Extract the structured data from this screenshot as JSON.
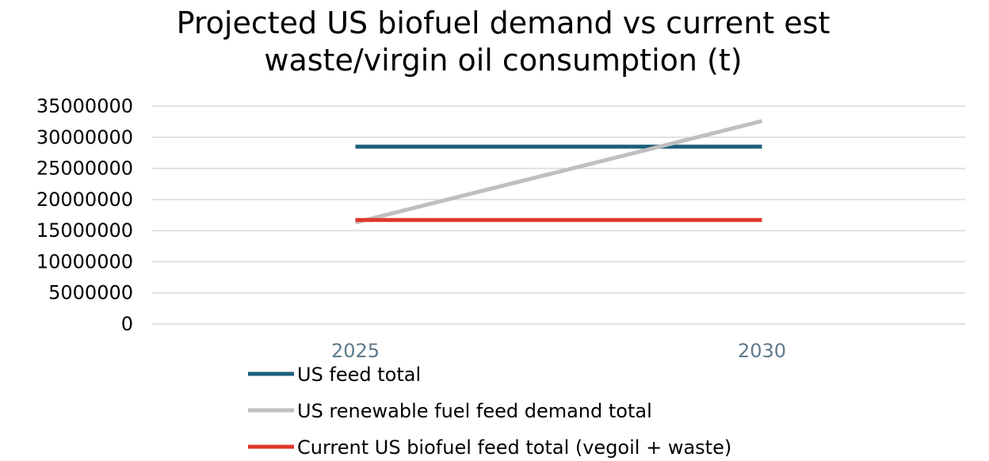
{
  "chart_data": {
    "type": "line",
    "title_lines": [
      "Projected US biofuel demand vs current est",
      "waste/virgin oil consumption (t)"
    ],
    "categories": [
      "2025",
      "2030"
    ],
    "ylim": [
      0,
      35000000
    ],
    "yticks": [
      "0",
      "5000000",
      "10000000",
      "15000000",
      "20000000",
      "25000000",
      "30000000",
      "35000000"
    ],
    "grid": true,
    "legend_position": "bottom-left",
    "series": [
      {
        "name": "US feed total",
        "color": "#1a5e7a",
        "values": [
          28500000,
          28500000
        ]
      },
      {
        "name": "US renewable fuel feed demand total",
        "color": "#bfbfbf",
        "values": [
          16300000,
          32600000
        ]
      },
      {
        "name": "Current US biofuel feed total (vegoil + waste)",
        "color": "#e0382b",
        "values": [
          16700000,
          16700000
        ]
      }
    ]
  }
}
